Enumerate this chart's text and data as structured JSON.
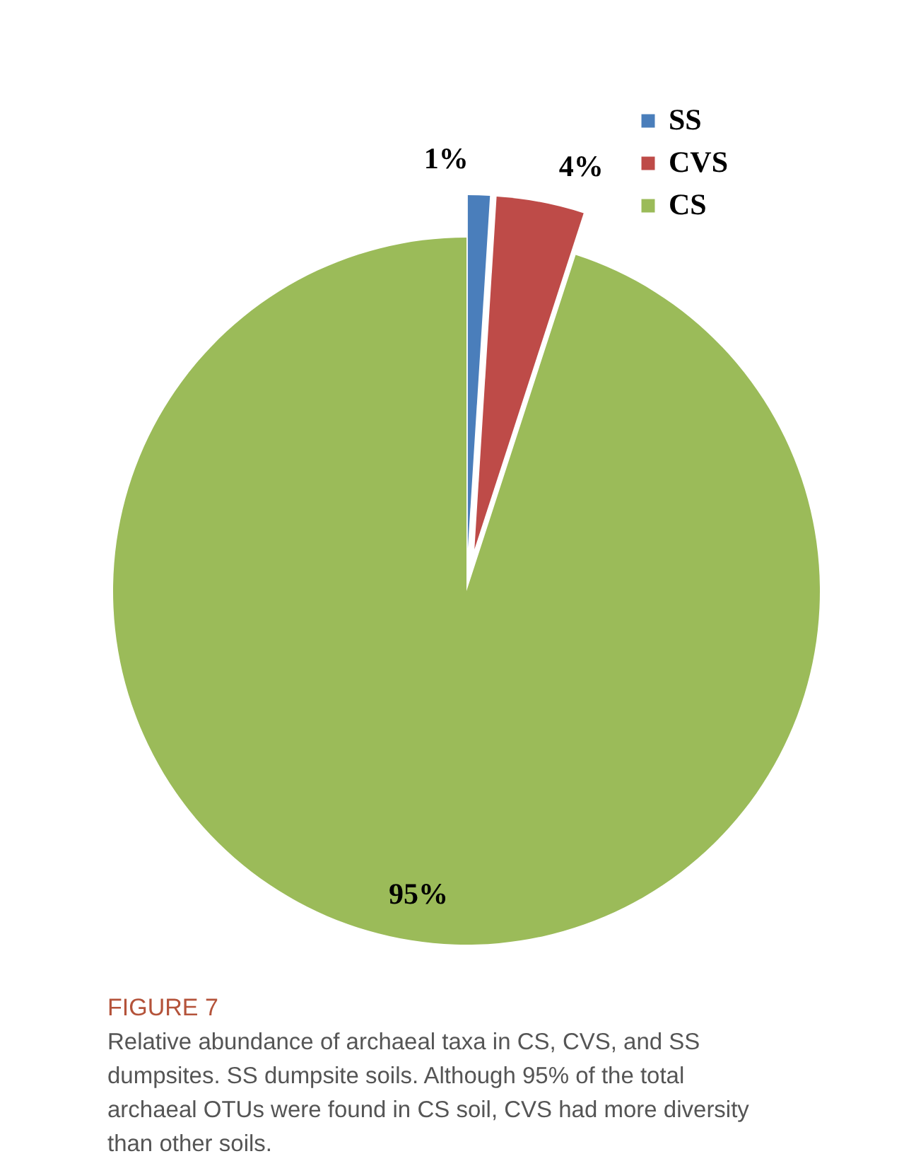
{
  "chart_data": {
    "type": "pie",
    "categories": [
      "SS",
      "CVS",
      "CS"
    ],
    "values": [
      1,
      4,
      95
    ],
    "colors": [
      "#4a7ebb",
      "#be4b48",
      "#9bbb59"
    ],
    "value_labels": [
      "1%",
      "4%",
      "95%"
    ],
    "legend": "top right",
    "annotations": [
      "FIGURE 7",
      "Relative abundance of archaeal taxa in CS, CVS, and SS dumpsites. SS dumpsite soils. Although 95% of the total archaeal OTUs were found in CS soil, CVS had more diversity than other soils."
    ]
  }
}
